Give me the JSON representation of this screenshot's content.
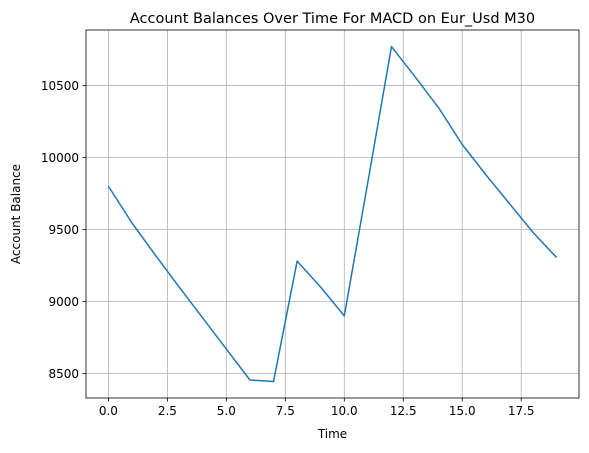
{
  "chart_data": {
    "type": "line",
    "title": "Account Balances Over Time For MACD on Eur_Usd M30",
    "xlabel": "Time",
    "ylabel": "Account Balance",
    "xlim": [
      -0.95,
      19.95
    ],
    "ylim": [
      8330,
      10885
    ],
    "x_ticks": [
      0.0,
      2.5,
      5.0,
      7.5,
      10.0,
      12.5,
      15.0,
      17.5
    ],
    "x_tick_labels": [
      "0.0",
      "2.5",
      "5.0",
      "7.5",
      "10.0",
      "12.5",
      "15.0",
      "17.5"
    ],
    "y_ticks": [
      8500,
      9000,
      9500,
      10000,
      10500
    ],
    "y_tick_labels": [
      "8500",
      "9000",
      "9500",
      "10000",
      "10500"
    ],
    "grid": true,
    "line_color": "#1f77b4",
    "grid_color": "#b0b0b0",
    "series": [
      {
        "x": [
          0,
          1,
          2,
          3,
          4,
          5,
          6,
          7,
          8,
          9,
          10,
          11,
          12,
          13,
          14,
          15,
          16,
          17,
          18,
          19
        ],
        "values": [
          9800,
          9545,
          9320,
          9100,
          8885,
          8670,
          8455,
          8445,
          9280,
          9100,
          8900,
          9830,
          10770,
          10560,
          10345,
          10090,
          9880,
          9680,
          9480,
          9305
        ]
      }
    ]
  }
}
